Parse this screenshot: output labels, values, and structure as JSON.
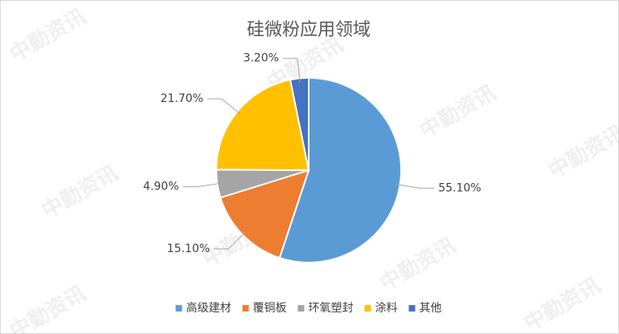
{
  "chart_data": {
    "type": "pie",
    "title": "硅微粉应用领域",
    "categories": [
      "高级建材",
      "覆铜板",
      "环氧塑封",
      "涂料",
      "其他"
    ],
    "values": [
      55.1,
      15.1,
      4.9,
      21.7,
      3.2
    ],
    "value_labels": [
      "55.10%",
      "15.10%",
      "4.90%",
      "21.70%",
      "3.20%"
    ],
    "colors": [
      "#5b9bd5",
      "#ed7d31",
      "#a5a5a5",
      "#ffc000",
      "#4472c4"
    ],
    "legend": "bottom",
    "watermark": "中勤资讯"
  }
}
